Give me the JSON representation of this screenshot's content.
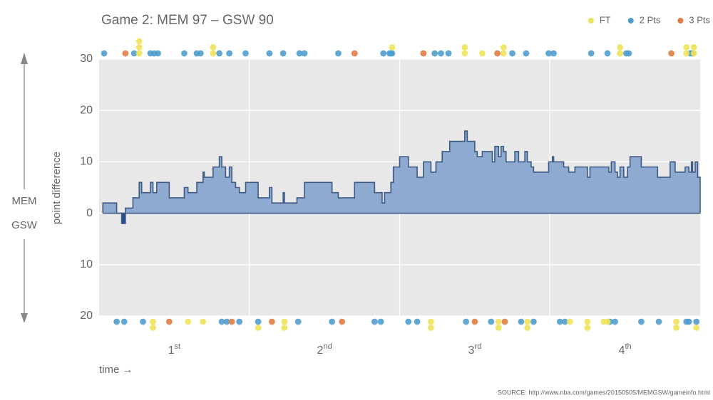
{
  "chart_data": {
    "type": "step",
    "title": "Game 2: MEM 97  –  GSW 90",
    "y_label": "point difference",
    "x_label": "time →",
    "team_labels": [
      "MEM",
      "GSW"
    ],
    "source": "SOURCE: http://www.nba.com/games/20150505/MEMGSW/gameinfo.html",
    "xlim": [
      0,
      48
    ],
    "xgrid": [
      12,
      24,
      36
    ],
    "periods": [
      "1st",
      "2nd",
      "3rd",
      "4th"
    ],
    "ylim": [
      -20,
      30
    ],
    "yticks": [
      {
        "value": -20,
        "label": "20"
      },
      {
        "value": -10,
        "label": "10"
      },
      0,
      10,
      20,
      30
    ],
    "grid": true,
    "area_color": "#8eaad1",
    "line_color": "#3d5a85",
    "negative_color": "#1f4e8c",
    "margin": {
      "x": [
        0.3,
        1.4,
        1.8,
        2.1,
        2.7,
        3.2,
        3.4,
        4.1,
        4.3,
        4.6,
        5.6,
        6.8,
        7.1,
        7.8,
        8.3,
        8.4,
        9.1,
        9.6,
        9.8,
        10.1,
        10.4,
        10.6,
        10.9,
        11.2,
        11.7,
        12.7,
        13.6,
        13.8,
        14.7,
        14.8,
        15.8,
        16.4,
        18.6,
        19.1,
        20.4,
        22.0,
        22.6,
        22.8,
        23.3,
        23.5,
        24.0,
        24.7,
        25.4,
        25.9,
        26.5,
        26.9,
        27.4,
        28.0,
        29.2,
        29.4,
        30.0,
        30.2,
        30.6,
        31.4,
        31.6,
        31.9,
        32.1,
        32.3,
        32.5,
        33.2,
        33.5,
        34.0,
        34.2,
        34.5,
        34.7,
        35.9,
        36.2,
        36.3,
        37.1,
        37.5,
        38.0,
        39.0,
        39.2,
        40.7,
        40.9,
        41.2,
        41.4,
        41.6,
        41.9,
        42.2,
        42.4,
        43.3,
        44.6,
        45.6,
        46.0,
        46.8,
        47.1,
        47.3,
        47.4,
        47.6,
        47.8
      ],
      "values": [
        2,
        0,
        -2,
        1,
        3,
        6,
        4,
        6,
        4,
        6,
        3,
        5,
        4,
        6,
        8,
        7,
        9,
        11,
        9,
        7,
        9,
        6,
        5,
        4,
        6,
        3,
        5,
        2,
        4,
        2,
        3,
        6,
        4,
        3,
        6,
        4,
        2,
        4,
        6,
        9,
        11,
        9,
        7,
        10,
        8,
        10,
        12,
        14,
        16,
        14,
        12,
        11,
        12,
        10,
        13,
        11,
        13,
        12,
        10,
        12,
        10,
        12,
        10,
        9,
        8,
        10,
        11,
        10,
        9,
        8,
        9,
        7,
        9,
        8,
        10,
        8,
        7,
        9,
        7,
        9,
        11,
        9,
        7,
        10,
        8,
        9,
        8,
        10,
        8,
        10,
        7
      ]
    },
    "legend": "top-right",
    "series": [
      {
        "name": "FT",
        "color": "#efe35a",
        "mem": [
          3.2,
          3.2,
          3.2,
          9.1,
          9.1,
          23.4,
          29.2,
          29.2,
          30.6,
          32.3,
          32.3,
          41.6,
          41.6,
          46.9,
          46.9,
          47.5,
          47.5
        ],
        "gsw": [
          4.3,
          4.3,
          7.1,
          8.3,
          12.7,
          14.8,
          14.8,
          26.5,
          26.5,
          31.9,
          31.9,
          34.2,
          34.2,
          37.6,
          39.0,
          39.0,
          40.3,
          40.6,
          46.1,
          46.1,
          47.7
        ]
      },
      {
        "name": "2 Pts",
        "color": "#4f9dcf",
        "mem": [
          0.4,
          2.8,
          4.1,
          4.4,
          4.7,
          6.8,
          7.8,
          8.1,
          9.6,
          10.4,
          11.7,
          13.6,
          14.7,
          16.0,
          16.4,
          19.1,
          22.7,
          23.2,
          23.3,
          23.4,
          26.8,
          27.3,
          27.9,
          33.0,
          34.1,
          35.9,
          36.3,
          39.3,
          40.6,
          42.1,
          42.3,
          47.2,
          47.4
        ],
        "gsw": [
          1.4,
          2.0,
          3.5,
          9.8,
          10.2,
          11.2,
          12.7,
          15.9,
          18.6,
          22.0,
          22.5,
          24.7,
          25.4,
          29.3,
          31.3,
          33.7,
          34.7,
          36.8,
          37.2,
          40.8,
          41.2,
          43.3,
          44.7,
          46.9,
          47.1,
          47.7
        ]
      },
      {
        "name": "3 Pts",
        "color": "#e07c45",
        "mem": [
          2.1,
          20.4,
          25.9,
          31.8,
          45.7
        ],
        "gsw": [
          5.6,
          10.6,
          13.8,
          19.4,
          30.0,
          32.4
        ]
      }
    ]
  }
}
